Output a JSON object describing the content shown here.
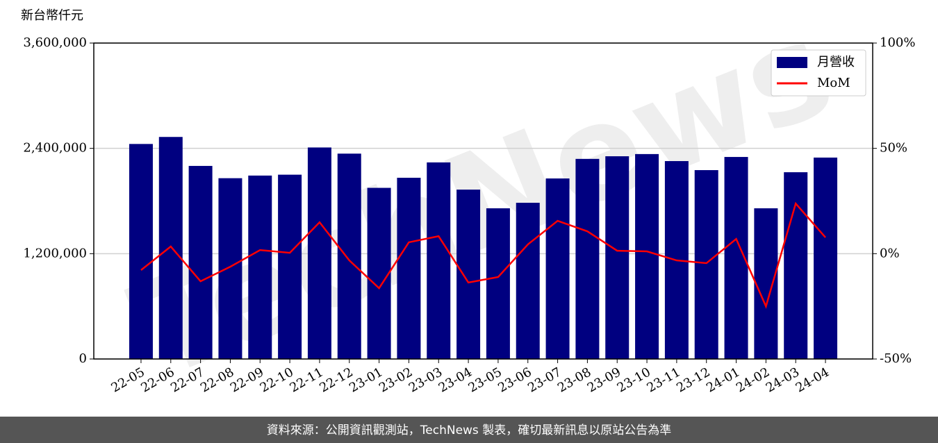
{
  "chart_data": {
    "type": "bar-line",
    "y_label": "新台幣仟元",
    "watermark": "TechNews",
    "footer": "資料來源：公開資訊觀測站，TechNews 製表，確切最新訊息以原站公告為準",
    "categories": [
      "22-05",
      "22-06",
      "22-07",
      "22-08",
      "22-09",
      "22-10",
      "22-11",
      "22-12",
      "23-01",
      "23-02",
      "23-03",
      "23-04",
      "23-05",
      "23-06",
      "23-07",
      "23-08",
      "23-09",
      "23-10",
      "23-11",
      "23-12",
      "24-01",
      "24-02",
      "24-03",
      "24-04"
    ],
    "series": [
      {
        "name": "月營收",
        "type": "bar",
        "color": "#000080",
        "values": [
          2450000,
          2530000,
          2200000,
          2060000,
          2090000,
          2100000,
          2410000,
          2340000,
          1950000,
          2065000,
          2240000,
          1930000,
          1717000,
          1780000,
          2057000,
          2280000,
          2310000,
          2335000,
          2255000,
          2152000,
          2302000,
          1717000,
          2128000,
          2295000
        ]
      },
      {
        "name": "MoM",
        "type": "line",
        "axis": "y2",
        "color": "#ff0000",
        "values": [
          -7.8,
          3.4,
          -13.1,
          -6.2,
          1.7,
          0.4,
          14.9,
          -3.2,
          -16.4,
          5.4,
          8.3,
          -13.7,
          -11.1,
          4.4,
          15.6,
          10.6,
          1.4,
          1.1,
          -3.2,
          -4.5,
          7.0,
          -25.0,
          23.8,
          7.7
        ]
      }
    ],
    "ylim": [
      0,
      3600000
    ],
    "yticks": [
      0,
      {
        "value": 1200000,
        "label": "1,200,000"
      },
      {
        "value": 2400000,
        "label": "2,400,000"
      },
      {
        "value": 3600000,
        "label": "3,600,000"
      }
    ],
    "y2lim": [
      -50,
      100
    ],
    "y2ticks": [
      {
        "value": -50,
        "label": "-50%"
      },
      {
        "value": 0,
        "label": "0%"
      },
      {
        "value": 50,
        "label": "50%"
      },
      {
        "value": 100,
        "label": "100%"
      }
    ],
    "grid": true,
    "legend": "upper right"
  }
}
